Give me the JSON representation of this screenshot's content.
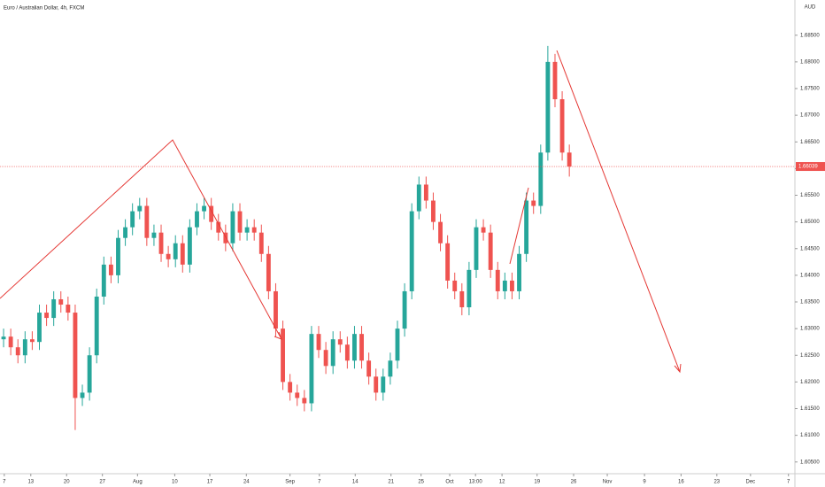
{
  "chart_data": {
    "type": "candlestick",
    "title": "Euro / Australian Dollar, 4h, FXCM",
    "currency": "AUD",
    "up_color": "#26a69a",
    "down_color": "#ef5350",
    "last_price": 1.66039,
    "xlim": [
      -0.5,
      110.5
    ],
    "xticks": [
      {
        "value": 0.1,
        "label": "7"
      },
      {
        "value": 3.8,
        "label": "13"
      },
      {
        "value": 8.8,
        "label": "20"
      },
      {
        "value": 13.8,
        "label": "27"
      },
      {
        "value": 18.7,
        "label": "Aug"
      },
      {
        "value": 23.9,
        "label": "10"
      },
      {
        "value": 28.8,
        "label": "17"
      },
      {
        "value": 33.9,
        "label": "24"
      },
      {
        "value": 40.0,
        "label": "Sep"
      },
      {
        "value": 44.1,
        "label": "7"
      },
      {
        "value": 49.1,
        "label": "14"
      },
      {
        "value": 54.1,
        "label": "21"
      },
      {
        "value": 58.3,
        "label": "25"
      },
      {
        "value": 62.3,
        "label": "Oct"
      },
      {
        "value": 65.9,
        "label": "13:00"
      },
      {
        "value": 69.6,
        "label": "12"
      },
      {
        "value": 74.5,
        "label": "19"
      },
      {
        "value": 79.6,
        "label": "26"
      },
      {
        "value": 84.3,
        "label": "Nov"
      },
      {
        "value": 89.5,
        "label": "9"
      },
      {
        "value": 94.6,
        "label": "16"
      },
      {
        "value": 99.6,
        "label": "23"
      },
      {
        "value": 104.3,
        "label": "Dec"
      },
      {
        "value": 109.6,
        "label": "7"
      }
    ],
    "ylim": [
      1.6028,
      1.6916
    ],
    "yticks": [
      {
        "value": 1.605,
        "label": "1.60500"
      },
      {
        "value": 1.61,
        "label": "1.61000"
      },
      {
        "value": 1.615,
        "label": "1.61500"
      },
      {
        "value": 1.62,
        "label": "1.62000"
      },
      {
        "value": 1.625,
        "label": "1.62500"
      },
      {
        "value": 1.63,
        "label": "1.63000"
      },
      {
        "value": 1.635,
        "label": "1.63500"
      },
      {
        "value": 1.64,
        "label": "1.64000"
      },
      {
        "value": 1.645,
        "label": "1.64500"
      },
      {
        "value": 1.65,
        "label": "1.65000"
      },
      {
        "value": 1.655,
        "label": "1.65500"
      },
      {
        "value": 1.66,
        "label": "1.66000"
      },
      {
        "value": 1.665,
        "label": "1.66500"
      },
      {
        "value": 1.67,
        "label": "1.67000"
      },
      {
        "value": 1.675,
        "label": "1.67500"
      },
      {
        "value": 1.68,
        "label": "1.68000"
      },
      {
        "value": 1.685,
        "label": "1.68500"
      }
    ],
    "open": [
      1.628,
      1.6285,
      1.6265,
      1.625,
      1.628,
      1.6275,
      1.633,
      1.632,
      1.6355,
      1.6345,
      1.633,
      1.617,
      1.618,
      1.625,
      1.636,
      1.642,
      1.64,
      1.647,
      1.649,
      1.652,
      1.653,
      1.647,
      1.648,
      1.644,
      1.643,
      1.646,
      1.642,
      1.649,
      1.652,
      1.653,
      1.65,
      1.648,
      1.646,
      1.652,
      1.648,
      1.649,
      1.648,
      1.644,
      1.637,
      1.63,
      1.62,
      1.618,
      1.617,
      1.616,
      1.629,
      1.626,
      1.623,
      1.628,
      1.627,
      1.624,
      1.629,
      1.624,
      1.621,
      1.618,
      1.621,
      1.624,
      1.63,
      1.637,
      1.652,
      1.657,
      1.654,
      1.65,
      1.646,
      1.639,
      1.637,
      1.634,
      1.641,
      1.649,
      1.648,
      1.641,
      1.637,
      1.639,
      1.637,
      1.644,
      1.654,
      1.653,
      1.663,
      1.68,
      1.673,
      1.663
    ],
    "high": [
      1.63,
      1.63,
      1.628,
      1.6295,
      1.6295,
      1.6345,
      1.6345,
      1.637,
      1.637,
      1.636,
      1.6345,
      1.6195,
      1.6265,
      1.6375,
      1.6435,
      1.6435,
      1.6485,
      1.6505,
      1.6535,
      1.6545,
      1.6545,
      1.6495,
      1.6495,
      1.6455,
      1.6475,
      1.6475,
      1.6505,
      1.6535,
      1.6545,
      1.6545,
      1.6515,
      1.6495,
      1.6535,
      1.6535,
      1.6505,
      1.6505,
      1.6495,
      1.6455,
      1.6385,
      1.6315,
      1.6215,
      1.6195,
      1.6185,
      1.6305,
      1.6305,
      1.6275,
      1.6295,
      1.6295,
      1.6285,
      1.6305,
      1.6305,
      1.6255,
      1.6225,
      1.6225,
      1.6255,
      1.6315,
      1.6385,
      1.6535,
      1.6585,
      1.6585,
      1.6555,
      1.6515,
      1.6475,
      1.6405,
      1.6385,
      1.6425,
      1.6505,
      1.6505,
      1.6495,
      1.6425,
      1.6405,
      1.6405,
      1.6455,
      1.6555,
      1.6555,
      1.6645,
      1.683,
      1.6815,
      1.6745,
      1.6645
    ],
    "low": [
      1.6265,
      1.625,
      1.6235,
      1.6235,
      1.626,
      1.626,
      1.6305,
      1.6305,
      1.633,
      1.6315,
      1.611,
      1.6155,
      1.6165,
      1.6235,
      1.6345,
      1.6385,
      1.6385,
      1.6455,
      1.6475,
      1.6505,
      1.6455,
      1.6455,
      1.6425,
      1.6415,
      1.6415,
      1.6405,
      1.6405,
      1.6475,
      1.6505,
      1.6485,
      1.6465,
      1.6445,
      1.6445,
      1.6465,
      1.6465,
      1.6465,
      1.6425,
      1.6355,
      1.6285,
      1.6185,
      1.6165,
      1.6155,
      1.6145,
      1.6145,
      1.6245,
      1.6215,
      1.6215,
      1.6255,
      1.6225,
      1.6225,
      1.6225,
      1.6195,
      1.6165,
      1.6165,
      1.6195,
      1.6225,
      1.6285,
      1.6355,
      1.6505,
      1.6525,
      1.6485,
      1.6445,
      1.6375,
      1.6355,
      1.6325,
      1.6325,
      1.6395,
      1.6465,
      1.6395,
      1.6355,
      1.6355,
      1.6355,
      1.6355,
      1.6425,
      1.6515,
      1.6515,
      1.6615,
      1.6715,
      1.6615,
      1.6585
    ],
    "close": [
      1.6285,
      1.6265,
      1.625,
      1.628,
      1.6275,
      1.633,
      1.632,
      1.6355,
      1.6345,
      1.633,
      1.617,
      1.618,
      1.625,
      1.636,
      1.642,
      1.64,
      1.647,
      1.649,
      1.652,
      1.653,
      1.647,
      1.648,
      1.644,
      1.643,
      1.646,
      1.642,
      1.649,
      1.652,
      1.653,
      1.65,
      1.648,
      1.646,
      1.652,
      1.648,
      1.649,
      1.648,
      1.644,
      1.637,
      1.63,
      1.62,
      1.618,
      1.617,
      1.616,
      1.629,
      1.626,
      1.623,
      1.628,
      1.627,
      1.624,
      1.629,
      1.624,
      1.621,
      1.618,
      1.621,
      1.624,
      1.63,
      1.637,
      1.652,
      1.657,
      1.654,
      1.65,
      1.646,
      1.639,
      1.637,
      1.634,
      1.641,
      1.649,
      1.648,
      1.641,
      1.637,
      1.639,
      1.637,
      1.644,
      1.654,
      1.653,
      1.663,
      1.68,
      1.673,
      1.663,
      1.6604
    ]
  }
}
